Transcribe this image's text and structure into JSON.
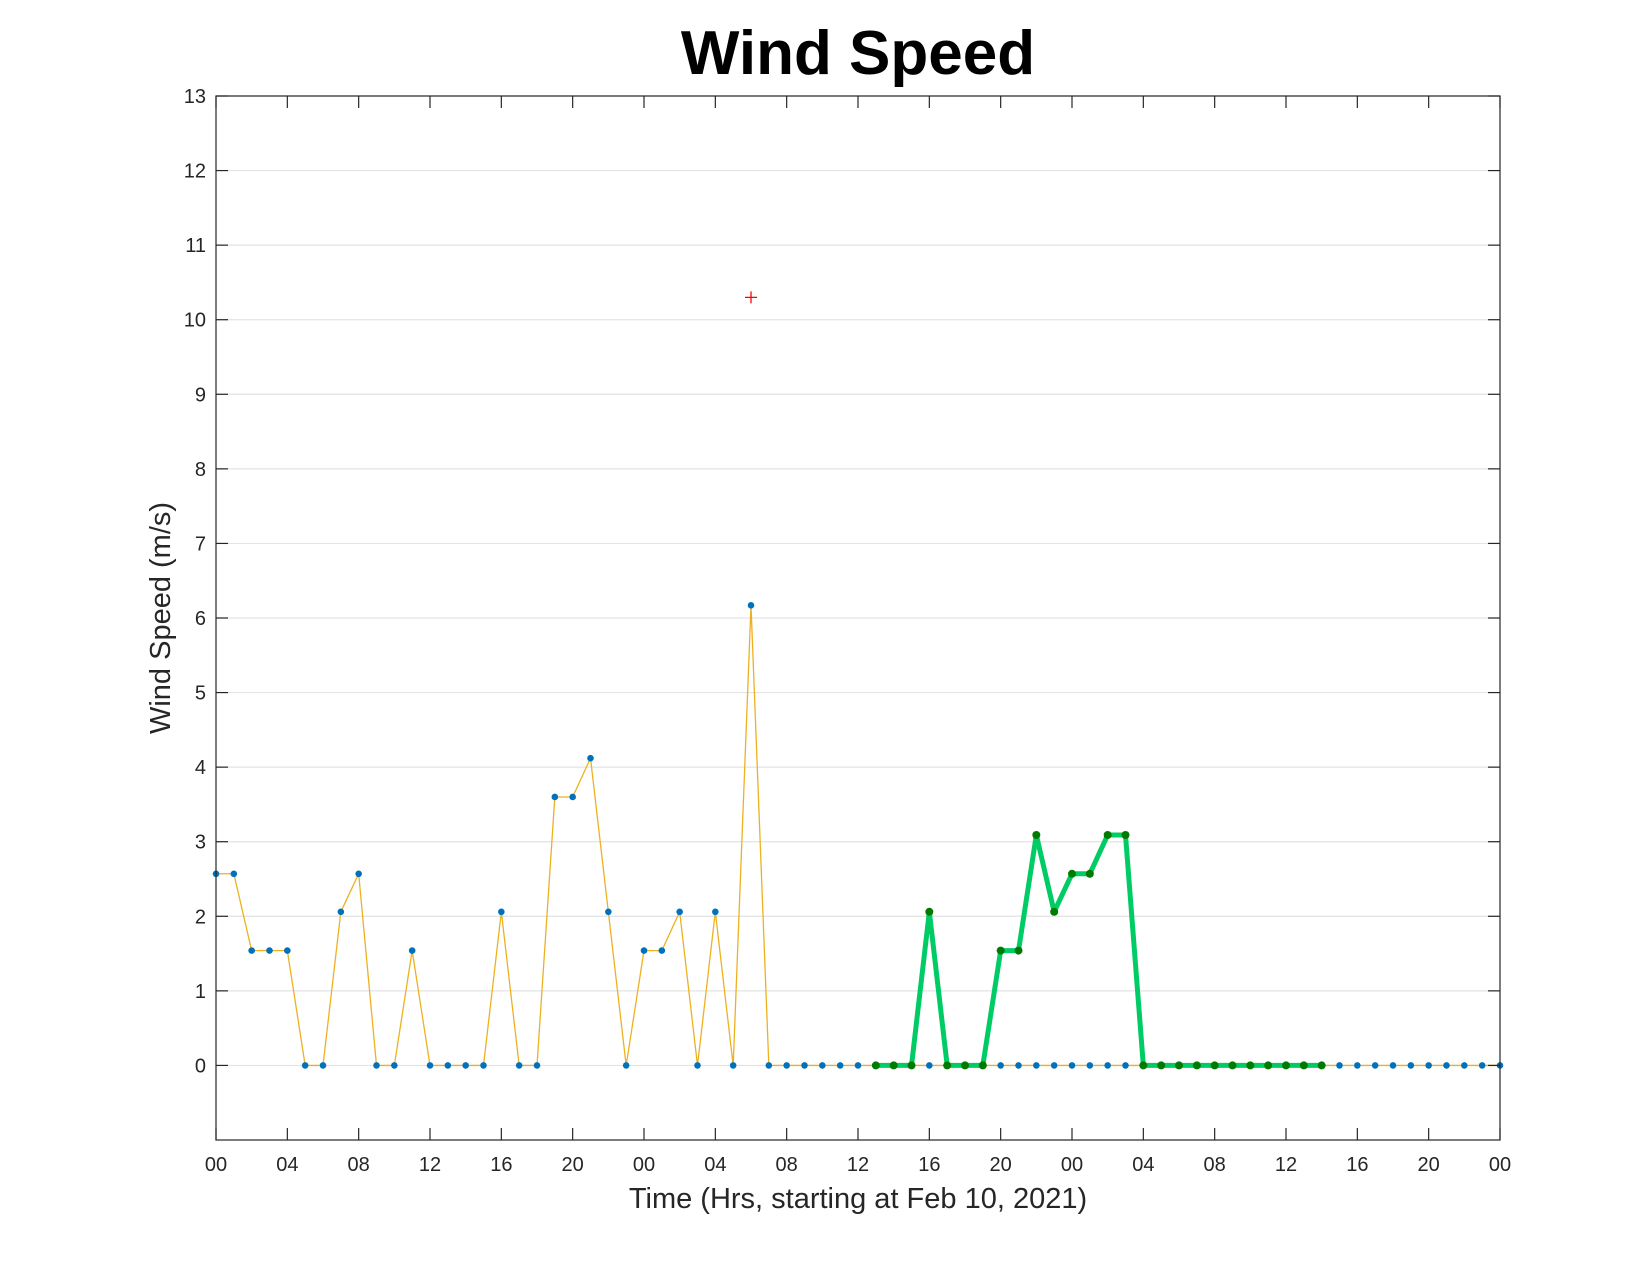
{
  "chart_data": {
    "type": "line",
    "title": "Wind Speed",
    "xlabel": "Time (Hrs, starting at Feb 10, 2021)",
    "ylabel": "Wind Speed (m/s)",
    "ylim": [
      -1,
      13
    ],
    "xlim": [
      0,
      72
    ],
    "grid": "horizontal",
    "yticks": [
      0,
      1,
      2,
      3,
      4,
      5,
      6,
      7,
      8,
      9,
      10,
      11,
      12,
      13
    ],
    "xticks": [
      {
        "hour": 0,
        "label": "00"
      },
      {
        "hour": 4,
        "label": "04"
      },
      {
        "hour": 8,
        "label": "08"
      },
      {
        "hour": 12,
        "label": "12"
      },
      {
        "hour": 16,
        "label": "16"
      },
      {
        "hour": 20,
        "label": "20"
      },
      {
        "hour": 24,
        "label": "00"
      },
      {
        "hour": 28,
        "label": "04"
      },
      {
        "hour": 32,
        "label": "08"
      },
      {
        "hour": 36,
        "label": "12"
      },
      {
        "hour": 40,
        "label": "16"
      },
      {
        "hour": 44,
        "label": "20"
      },
      {
        "hour": 48,
        "label": "00"
      },
      {
        "hour": 52,
        "label": "04"
      },
      {
        "hour": 56,
        "label": "08"
      },
      {
        "hour": 60,
        "label": "12"
      },
      {
        "hour": 64,
        "label": "16"
      },
      {
        "hour": 68,
        "label": "20"
      },
      {
        "hour": 72,
        "label": "00"
      }
    ],
    "series": [
      {
        "style": "thin-line-with-dots",
        "line_color": "#EDB120",
        "marker_color": "#0072BD",
        "x": [
          0,
          1,
          2,
          3,
          4,
          5,
          6,
          7,
          8,
          9,
          10,
          11,
          12,
          13,
          14,
          15,
          16,
          17,
          18,
          19,
          20,
          21,
          22,
          23,
          24,
          25,
          26,
          27,
          28,
          29,
          30,
          31,
          32,
          33,
          34,
          35,
          36,
          37,
          38,
          39,
          40,
          41,
          42,
          43,
          44,
          45,
          46,
          47,
          48,
          49,
          50,
          51,
          52,
          53,
          54,
          55,
          56,
          57,
          58,
          59,
          60,
          61,
          62,
          63,
          64,
          65,
          66,
          67,
          68,
          69,
          70,
          71,
          72
        ],
        "y": [
          2.57,
          2.57,
          1.54,
          1.54,
          1.54,
          0,
          0,
          2.06,
          2.57,
          0,
          0,
          1.54,
          0,
          0,
          0,
          0,
          2.06,
          0,
          0,
          3.6,
          3.6,
          4.12,
          2.06,
          0,
          1.54,
          1.54,
          2.06,
          0,
          2.06,
          0,
          6.17,
          0,
          0,
          0,
          0,
          0,
          0,
          0,
          0,
          0,
          0,
          0,
          0,
          0,
          0,
          0,
          0,
          0,
          0,
          0,
          0,
          0,
          0,
          0,
          0,
          0,
          0,
          0,
          0,
          0,
          0,
          0,
          0,
          0,
          0,
          0,
          0,
          0,
          0,
          0,
          0,
          0,
          0
        ]
      },
      {
        "style": "thick-line-with-dots",
        "line_color": "#00CC66",
        "marker_color": "#007A00",
        "x": [
          37,
          38,
          39,
          40,
          41,
          42,
          43,
          44,
          45,
          46,
          47,
          48,
          49,
          50,
          51,
          52,
          53,
          54,
          55,
          56,
          57,
          58,
          59,
          60,
          61,
          62
        ],
        "y": [
          0,
          0,
          0,
          2.06,
          0,
          0,
          0,
          1.54,
          1.54,
          3.09,
          2.06,
          2.57,
          2.57,
          3.09,
          3.09,
          0,
          0,
          0,
          0,
          0,
          0,
          0,
          0,
          0,
          0,
          0
        ]
      },
      {
        "style": "plus-marker",
        "marker_color": "#FF0000",
        "x": [
          30
        ],
        "y": [
          10.3
        ]
      }
    ]
  }
}
